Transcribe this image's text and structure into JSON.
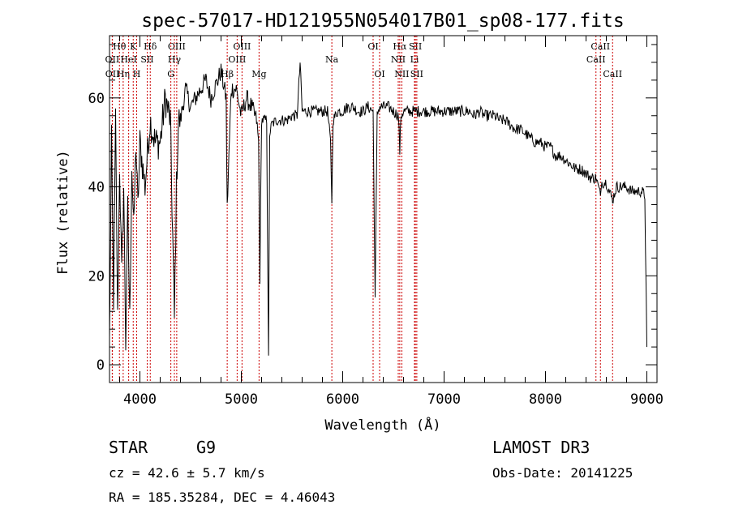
{
  "chart_data": {
    "type": "line",
    "title": "spec-57017-HD121955N054017B01_sp08-177.fits",
    "xlabel": "Wavelength (Å)",
    "ylabel": "Flux (relative)",
    "xlim": [
      3700,
      9100
    ],
    "ylim": [
      -4,
      74
    ],
    "xticks": [
      4000,
      5000,
      6000,
      7000,
      8000,
      9000
    ],
    "yticks": [
      0,
      20,
      40,
      60
    ],
    "series": [
      {
        "name": "flux",
        "x": [
          3700,
          3720,
          3740,
          3760,
          3780,
          3800,
          3820,
          3840,
          3860,
          3880,
          3900,
          3920,
          3940,
          3960,
          3980,
          4000,
          4050,
          4100,
          4150,
          4200,
          4250,
          4300,
          4340,
          4360,
          4380,
          4400,
          4450,
          4500,
          4550,
          4600,
          4650,
          4700,
          4750,
          4800,
          4850,
          4861,
          4900,
          4950,
          5000,
          5050,
          5100,
          5150,
          5170,
          5183,
          5200,
          5250,
          5269,
          5280,
          5300,
          5350,
          5400,
          5450,
          5500,
          5550,
          5580,
          5600,
          5650,
          5700,
          5750,
          5800,
          5850,
          5880,
          5893,
          5905,
          5950,
          6000,
          6050,
          6100,
          6150,
          6200,
          6250,
          6300,
          6320,
          6340,
          6360,
          6400,
          6450,
          6500,
          6550,
          6563,
          6575,
          6600,
          6650,
          6700,
          6750,
          6800,
          6850,
          6900,
          6950,
          7000,
          7050,
          7100,
          7150,
          7200,
          7250,
          7300,
          7350,
          7400,
          7450,
          7500,
          7550,
          7600,
          7650,
          7700,
          7750,
          7800,
          7850,
          7900,
          7950,
          8000,
          8050,
          8100,
          8150,
          8200,
          8250,
          8300,
          8350,
          8400,
          8450,
          8500,
          8542,
          8550,
          8600,
          8662,
          8700,
          8750,
          8800,
          8850,
          8900,
          8950,
          8980,
          9000
        ],
        "y": [
          5,
          50,
          15,
          55,
          10,
          45,
          20,
          40,
          5,
          35,
          10,
          45,
          30,
          50,
          35,
          50,
          40,
          55,
          50,
          50,
          60,
          55,
          10,
          40,
          55,
          55,
          62,
          58,
          60,
          62,
          64,
          60,
          63,
          66,
          60,
          35,
          62,
          62,
          56,
          60,
          58,
          55,
          50,
          20,
          55,
          55,
          1,
          52,
          54,
          55,
          55,
          55,
          56,
          56,
          68,
          57,
          57,
          57,
          57,
          57,
          57,
          50,
          37,
          55,
          57,
          57,
          58,
          58,
          57,
          57,
          58,
          57,
          15,
          56,
          58,
          58,
          58,
          57,
          56,
          48,
          56,
          57,
          57,
          57,
          57,
          57,
          57,
          57,
          57,
          57,
          57,
          57,
          57,
          57,
          57,
          56,
          57,
          56,
          56,
          56,
          55,
          55,
          54,
          53,
          53,
          52,
          51,
          50,
          50,
          49,
          49,
          47,
          47,
          46,
          45,
          44,
          44,
          43,
          42,
          42,
          38,
          41,
          41,
          37,
          40,
          40,
          40,
          39,
          39,
          39,
          38,
          4
        ]
      }
    ],
    "spectral_lines": [
      {
        "label": "Hθ",
        "wavelength": 3798,
        "row": 1
      },
      {
        "label": "OII",
        "wavelength": 3727,
        "row": 2
      },
      {
        "label": "OII",
        "wavelength": 3729,
        "row": 3
      },
      {
        "label": "Hη",
        "wavelength": 3835,
        "row": 3
      },
      {
        "label": "K",
        "wavelength": 3934,
        "row": 1
      },
      {
        "label": "HeI",
        "wavelength": 3889,
        "row": 2
      },
      {
        "label": "H",
        "wavelength": 3968,
        "row": 3
      },
      {
        "label": "Hδ",
        "wavelength": 4102,
        "row": 1
      },
      {
        "label": "SII",
        "wavelength": 4072,
        "row": 2
      },
      {
        "label": "OIII",
        "wavelength": 4363,
        "row": 1
      },
      {
        "label": "Hγ",
        "wavelength": 4340,
        "row": 2
      },
      {
        "label": "G",
        "wavelength": 4305,
        "row": 3
      },
      {
        "label": "Hβ",
        "wavelength": 4861,
        "row": 3
      },
      {
        "label": "OIII",
        "wavelength": 5007,
        "row": 1
      },
      {
        "label": "OIII",
        "wavelength": 4959,
        "row": 2
      },
      {
        "label": "Mg",
        "wavelength": 5175,
        "row": 3
      },
      {
        "label": "Na",
        "wavelength": 5893,
        "row": 2
      },
      {
        "label": "OI",
        "wavelength": 6300,
        "row": 1
      },
      {
        "label": "OI",
        "wavelength": 6364,
        "row": 3
      },
      {
        "label": "Hα",
        "wavelength": 6563,
        "row": 1
      },
      {
        "label": "SII",
        "wavelength": 6717,
        "row": 1
      },
      {
        "label": "NII",
        "wavelength": 6548,
        "row": 2
      },
      {
        "label": "Li",
        "wavelength": 6708,
        "row": 2
      },
      {
        "label": "NII",
        "wavelength": 6583,
        "row": 3
      },
      {
        "label": "SII",
        "wavelength": 6731,
        "row": 3
      },
      {
        "label": "CaII",
        "wavelength": 8542,
        "row": 1
      },
      {
        "label": "CaII",
        "wavelength": 8498,
        "row": 2
      },
      {
        "label": "CaII",
        "wavelength": 8662,
        "row": 3
      }
    ],
    "colors": {
      "line": "#000000",
      "marker": "#cc0000",
      "axis": "#000000"
    }
  },
  "info": {
    "object_type": "STAR",
    "subclass": "G9",
    "survey": "LAMOST DR3",
    "cz": "cz = 42.6 ± 5.7 km/s",
    "obs_date": "Obs-Date: 20141225",
    "coords": "RA = 185.35284, DEC =   4.46043"
  }
}
